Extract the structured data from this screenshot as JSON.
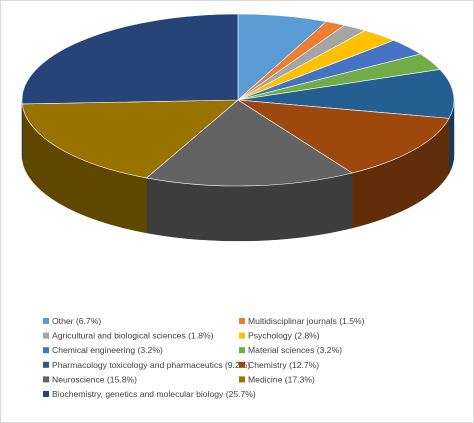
{
  "chart_data": {
    "type": "pie",
    "style": "3d",
    "slices": [
      {
        "label": "Other (6.7%)",
        "name": "Other",
        "value": 6.7,
        "color": "#5b9bd5"
      },
      {
        "label": "Multidisciplinar journals (1.5%)",
        "name": "Multidisciplinar journals",
        "value": 1.5,
        "color": "#ed7d31"
      },
      {
        "label": "Agricultural and biological sciences (1.8%)",
        "name": "Agricultural and biological sciences",
        "value": 1.8,
        "color": "#a5a5a5"
      },
      {
        "label": "Psychology (2.8%)",
        "name": "Psychology",
        "value": 2.8,
        "color": "#ffc000"
      },
      {
        "label": "Chemical engineering (3.2%)",
        "name": "Chemical engineering",
        "value": 3.2,
        "color": "#4472c4"
      },
      {
        "label": "Material sciences (3.2%)",
        "name": "Material sciences",
        "value": 3.2,
        "color": "#70ad47"
      },
      {
        "label": "Pharmacology toxicology and pharmaceutics (9.2%)",
        "name": "Pharmacology toxicology and pharmaceutics",
        "value": 9.2,
        "color": "#255e91"
      },
      {
        "label": "Chemistry (12.7%)",
        "name": "Chemistry",
        "value": 12.7,
        "color": "#9e480e"
      },
      {
        "label": "Neuroscience (15.8%)",
        "name": "Neuroscience",
        "value": 15.8,
        "color": "#636363"
      },
      {
        "label": "Medicine (17.3%)",
        "name": "Medicine",
        "value": 17.3,
        "color": "#997300"
      },
      {
        "label": "Biochemistry, genetics and molecular biology (25.7%)",
        "name": "Biochemistry, genetics and molecular biology",
        "value": 25.7,
        "color": "#264478"
      }
    ],
    "legend_position": "bottom"
  }
}
